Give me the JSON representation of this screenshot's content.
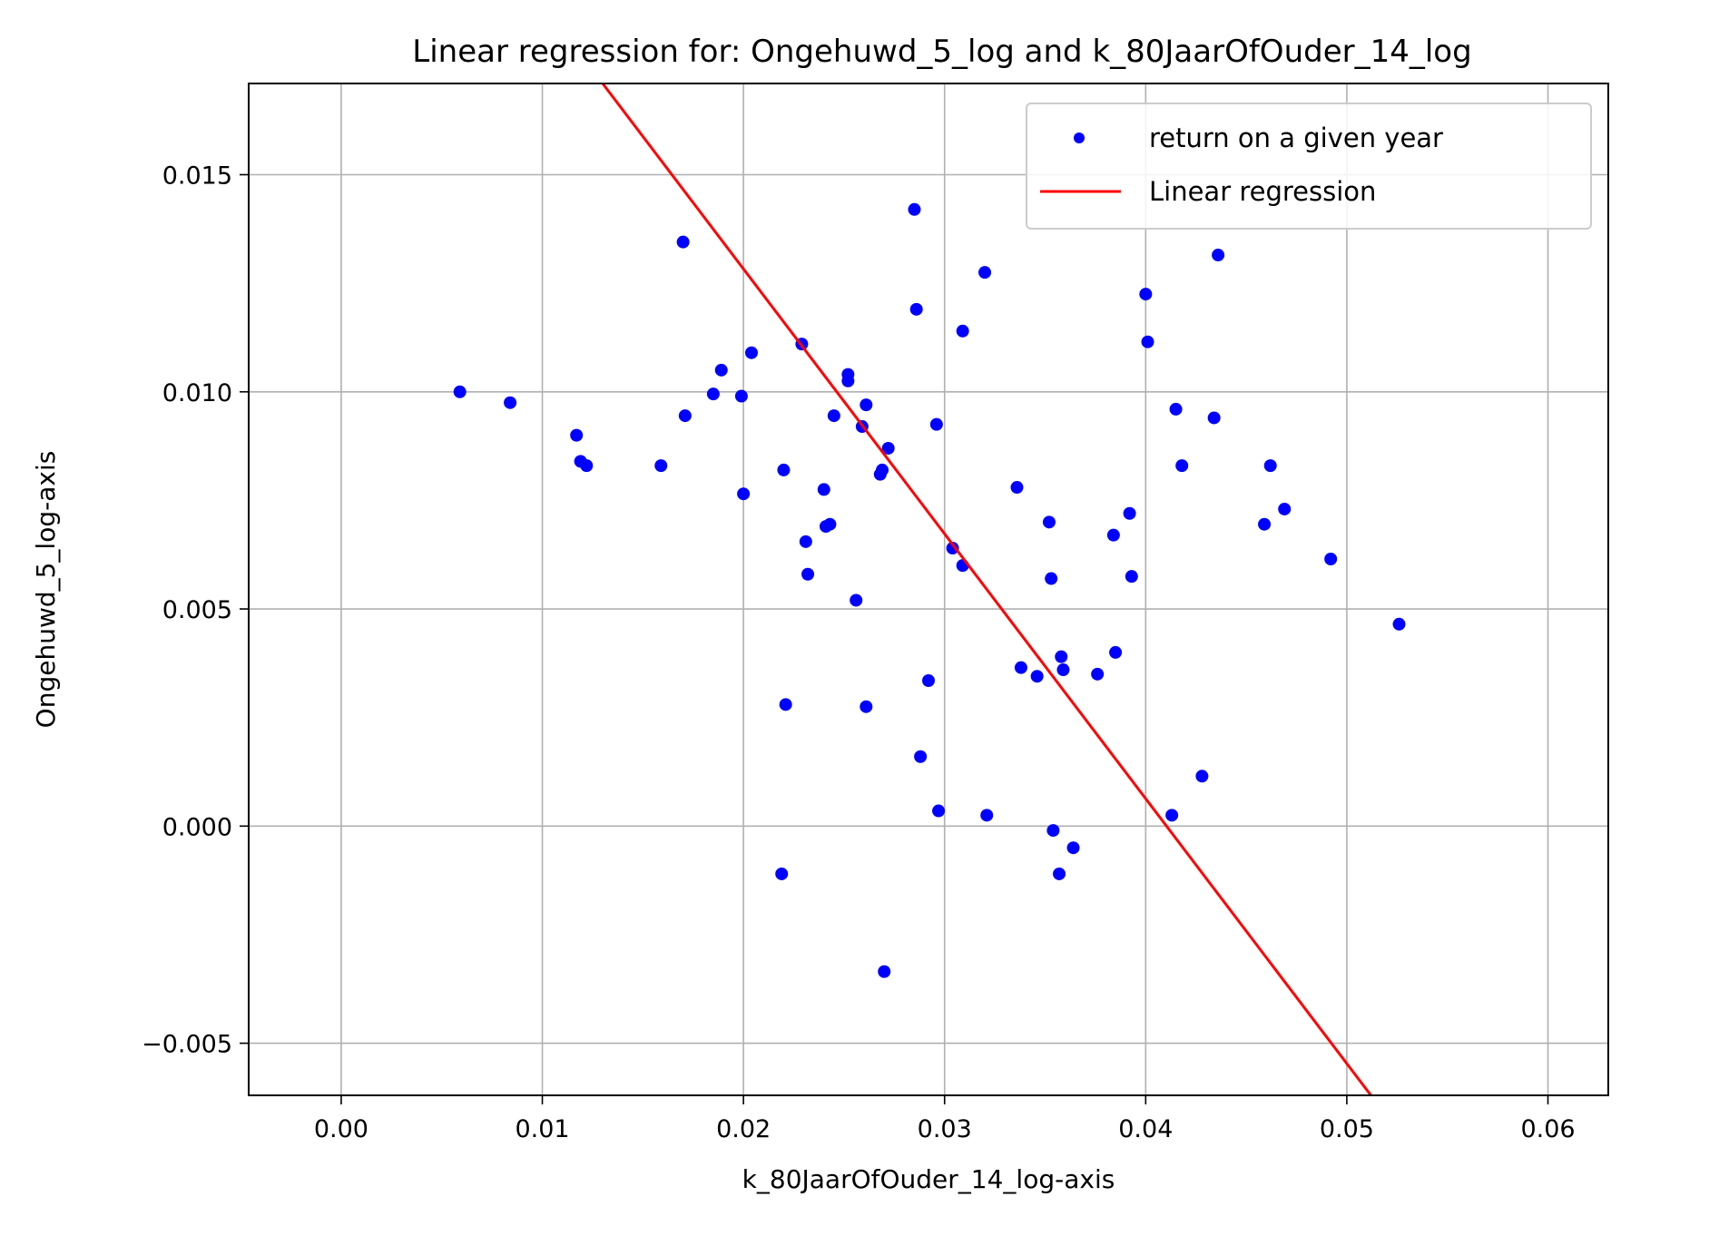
{
  "chart_data": {
    "type": "scatter",
    "title": "Linear regression for: Ongehuwd_5_log and k_80JaarOfOuder_14_log",
    "xlabel": "k_80JaarOfOuder_14_log-axis",
    "ylabel": "Ongehuwd_5_log-axis",
    "xlim": [
      -0.0046,
      0.063
    ],
    "ylim": [
      -0.0062,
      0.0171
    ],
    "xticks": [
      0.0,
      0.01,
      0.02,
      0.03,
      0.04,
      0.05,
      0.06
    ],
    "xtick_labels": [
      "0.00",
      "0.01",
      "0.02",
      "0.03",
      "0.04",
      "0.05",
      "0.06"
    ],
    "yticks": [
      -0.005,
      0.0,
      0.005,
      0.01,
      0.015
    ],
    "ytick_labels": [
      "−0.005",
      "0.000",
      "0.005",
      "0.010",
      "0.015"
    ],
    "grid": true,
    "legend_position": "top-right",
    "series": [
      {
        "name": "return on a given year",
        "kind": "scatter",
        "color": "#0000ff",
        "points": [
          [
            0.0059,
            0.01
          ],
          [
            0.0084,
            0.00975
          ],
          [
            0.0117,
            0.009
          ],
          [
            0.0119,
            0.0084
          ],
          [
            0.0122,
            0.0083
          ],
          [
            0.0159,
            0.0083
          ],
          [
            0.017,
            0.01345
          ],
          [
            0.0171,
            0.00945
          ],
          [
            0.0185,
            0.00995
          ],
          [
            0.0189,
            0.0105
          ],
          [
            0.0199,
            0.0099
          ],
          [
            0.02,
            0.00765
          ],
          [
            0.0204,
            0.0109
          ],
          [
            0.0219,
            -0.0011
          ],
          [
            0.022,
            0.0082
          ],
          [
            0.0221,
            0.0028
          ],
          [
            0.0229,
            0.0111
          ],
          [
            0.0231,
            0.00655
          ],
          [
            0.0232,
            0.0058
          ],
          [
            0.024,
            0.00775
          ],
          [
            0.0241,
            0.0069
          ],
          [
            0.0243,
            0.00695
          ],
          [
            0.0245,
            0.00945
          ],
          [
            0.0252,
            0.0104
          ],
          [
            0.0252,
            0.01025
          ],
          [
            0.0256,
            0.0052
          ],
          [
            0.0259,
            0.0092
          ],
          [
            0.0261,
            0.0097
          ],
          [
            0.0261,
            0.00275
          ],
          [
            0.0268,
            0.0081
          ],
          [
            0.0269,
            0.0082
          ],
          [
            0.027,
            -0.00335
          ],
          [
            0.0272,
            0.0087
          ],
          [
            0.0285,
            0.0142
          ],
          [
            0.0286,
            0.0119
          ],
          [
            0.0288,
            0.0016
          ],
          [
            0.0292,
            0.00335
          ],
          [
            0.0296,
            0.00925
          ],
          [
            0.0297,
            0.00035
          ],
          [
            0.0304,
            0.0064
          ],
          [
            0.0309,
            0.0114
          ],
          [
            0.0309,
            0.006
          ],
          [
            0.032,
            0.01275
          ],
          [
            0.0321,
            0.00025
          ],
          [
            0.0336,
            0.0078
          ],
          [
            0.0338,
            0.00365
          ],
          [
            0.0346,
            0.00345
          ],
          [
            0.0352,
            0.007
          ],
          [
            0.0353,
            0.0057
          ],
          [
            0.0354,
            -0.0001
          ],
          [
            0.0357,
            -0.0011
          ],
          [
            0.0358,
            0.0039
          ],
          [
            0.0359,
            0.0036
          ],
          [
            0.0364,
            -0.0005
          ],
          [
            0.0376,
            0.0035
          ],
          [
            0.0384,
            0.0067
          ],
          [
            0.0385,
            0.004
          ],
          [
            0.0392,
            0.0072
          ],
          [
            0.0393,
            0.00575
          ],
          [
            0.04,
            0.01225
          ],
          [
            0.0401,
            0.01115
          ],
          [
            0.0413,
            0.00025
          ],
          [
            0.0415,
            0.0096
          ],
          [
            0.0418,
            0.0083
          ],
          [
            0.0428,
            0.00115
          ],
          [
            0.0434,
            0.0094
          ],
          [
            0.0436,
            0.01315
          ],
          [
            0.0459,
            0.00695
          ],
          [
            0.0462,
            0.0083
          ],
          [
            0.0469,
            0.0073
          ],
          [
            0.0492,
            0.00615
          ],
          [
            0.0526,
            0.00465
          ]
        ]
      },
      {
        "name": "Linear regression",
        "kind": "line",
        "color": "#ff0000",
        "points": [
          [
            0.013,
            0.0171
          ],
          [
            0.0512,
            -0.0062
          ]
        ]
      }
    ]
  }
}
